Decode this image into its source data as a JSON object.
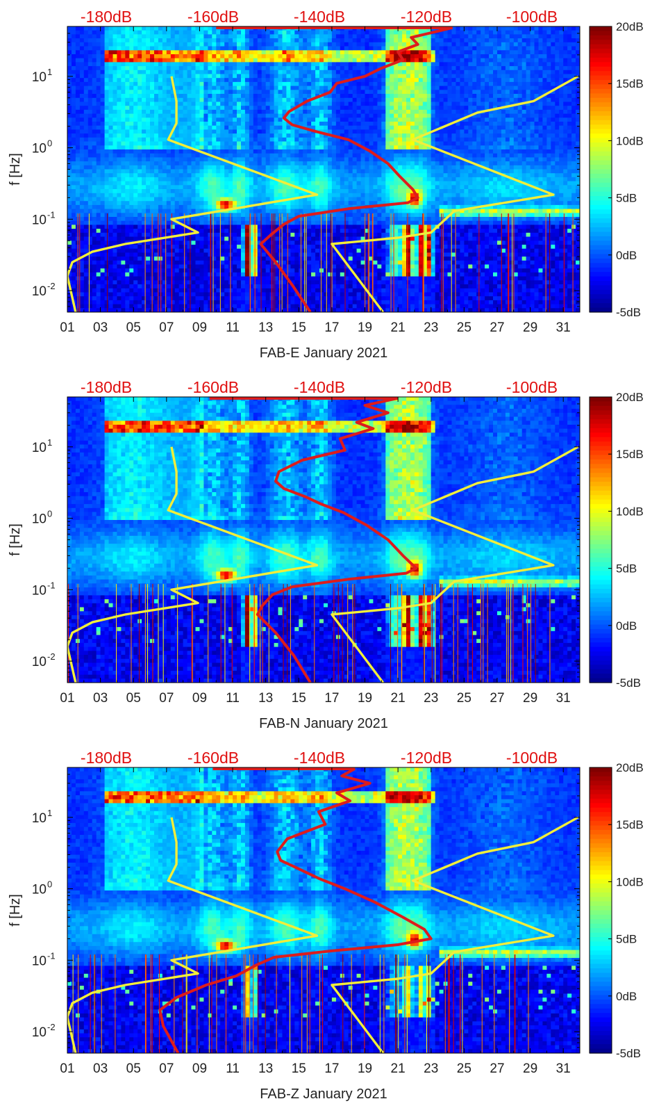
{
  "chart_data": [
    {
      "type": "heatmap",
      "station": "FAB-E",
      "xlabel": "FAB-E January 2021",
      "ylabel": "f [Hz]",
      "x_ticks": [
        "01",
        "03",
        "05",
        "07",
        "09",
        "11",
        "13",
        "15",
        "17",
        "19",
        "21",
        "23",
        "25",
        "27",
        "29",
        "31"
      ],
      "y_ticks": [
        "10^-2",
        "10^-1",
        "10^0",
        "10^1"
      ],
      "y_scale": "log",
      "ylim_hz": [
        0.005,
        50
      ],
      "top_axis_ticks": [
        "-180dB",
        "-160dB",
        "-140dB",
        "-120dB",
        "-100dB"
      ],
      "colorbar": {
        "ticks": [
          "20dB",
          "15dB",
          "10dB",
          "5dB",
          "0dB",
          "-5dB"
        ],
        "range_db": [
          -5,
          20
        ],
        "colormap": "jet"
      },
      "yellow_curve_color": "#f2ee3a",
      "red_curve_color": "#dd1c1c",
      "yellow_curve_left": [
        [
          7.3,
          10
        ],
        [
          7.6,
          4.5
        ],
        [
          7.6,
          2.2
        ],
        [
          7.1,
          1.3
        ],
        [
          16.1,
          0.22
        ],
        [
          7.3,
          0.1
        ],
        [
          8.9,
          0.065
        ],
        [
          4.5,
          0.045
        ],
        [
          2.5,
          0.035
        ],
        [
          1.3,
          0.025
        ],
        [
          1.0,
          0.016
        ],
        [
          1.5,
          0.005
        ]
      ],
      "yellow_curve_right": [
        [
          31.9,
          10
        ],
        [
          29.2,
          4.5
        ],
        [
          25.8,
          3.1
        ],
        [
          21.9,
          1.3
        ],
        [
          30.4,
          0.22
        ],
        [
          24.4,
          0.13
        ],
        [
          23.0,
          0.065
        ],
        [
          21.0,
          0.055
        ],
        [
          17.0,
          0.045
        ],
        [
          20.1,
          0.005
        ]
      ],
      "red_curve": [
        [
          24.3,
          48
        ],
        [
          21.8,
          35
        ],
        [
          22.2,
          28
        ],
        [
          21.0,
          22
        ],
        [
          21.3,
          17
        ],
        [
          20.0,
          13
        ],
        [
          19.0,
          10
        ],
        [
          17.3,
          8
        ],
        [
          16.9,
          6
        ],
        [
          15.5,
          4.5
        ],
        [
          14.4,
          3.2
        ],
        [
          14.1,
          2.6
        ],
        [
          14.6,
          2.1
        ],
        [
          16.0,
          1.7
        ],
        [
          18.0,
          1.3
        ],
        [
          19.3,
          0.9
        ],
        [
          20.4,
          0.6
        ],
        [
          21.1,
          0.4
        ],
        [
          21.9,
          0.26
        ],
        [
          22.2,
          0.2
        ],
        [
          21.6,
          0.17
        ],
        [
          18.0,
          0.14
        ],
        [
          15.0,
          0.11
        ],
        [
          14.1,
          0.085
        ],
        [
          13.3,
          0.06
        ],
        [
          12.7,
          0.045
        ],
        [
          13.6,
          0.025
        ],
        [
          14.6,
          0.012
        ],
        [
          15.7,
          0.005
        ]
      ],
      "red_top_segment": [
        10.0,
        24.3
      ]
    },
    {
      "type": "heatmap",
      "station": "FAB-N",
      "xlabel": "FAB-N January 2021",
      "ylabel": "f [Hz]",
      "x_ticks": [
        "01",
        "03",
        "05",
        "07",
        "09",
        "11",
        "13",
        "15",
        "17",
        "19",
        "21",
        "23",
        "25",
        "27",
        "29",
        "31"
      ],
      "y_ticks": [
        "10^-2",
        "10^-1",
        "10^0",
        "10^1"
      ],
      "y_scale": "log",
      "ylim_hz": [
        0.005,
        50
      ],
      "top_axis_ticks": [
        "-180dB",
        "-160dB",
        "-140dB",
        "-120dB",
        "-100dB"
      ],
      "colorbar": {
        "ticks": [
          "20dB",
          "15dB",
          "10dB",
          "5dB",
          "0dB",
          "-5dB"
        ],
        "range_db": [
          -5,
          20
        ],
        "colormap": "jet"
      },
      "yellow_curve_color": "#f2ee3a",
      "red_curve_color": "#dd1c1c",
      "yellow_curve_left": [
        [
          7.3,
          10
        ],
        [
          7.6,
          4.5
        ],
        [
          7.6,
          2.2
        ],
        [
          7.1,
          1.3
        ],
        [
          16.1,
          0.22
        ],
        [
          7.3,
          0.1
        ],
        [
          8.9,
          0.065
        ],
        [
          4.5,
          0.045
        ],
        [
          2.5,
          0.035
        ],
        [
          1.3,
          0.025
        ],
        [
          1.0,
          0.016
        ],
        [
          1.5,
          0.005
        ]
      ],
      "yellow_curve_right": [
        [
          31.9,
          10
        ],
        [
          29.2,
          4.5
        ],
        [
          25.8,
          3.1
        ],
        [
          21.9,
          1.3
        ],
        [
          30.4,
          0.22
        ],
        [
          24.4,
          0.13
        ],
        [
          23.0,
          0.065
        ],
        [
          21.0,
          0.055
        ],
        [
          17.0,
          0.045
        ],
        [
          20.1,
          0.005
        ]
      ],
      "red_curve": [
        [
          21.0,
          48
        ],
        [
          19.0,
          38
        ],
        [
          20.4,
          30
        ],
        [
          18.5,
          22
        ],
        [
          19.5,
          18
        ],
        [
          17.5,
          13
        ],
        [
          17.8,
          9
        ],
        [
          15.2,
          6.5
        ],
        [
          13.8,
          4.5
        ],
        [
          13.6,
          3.3
        ],
        [
          14.1,
          2.6
        ],
        [
          15.4,
          2.0
        ],
        [
          16.3,
          1.6
        ],
        [
          17.7,
          1.2
        ],
        [
          19.1,
          0.8
        ],
        [
          20.4,
          0.5
        ],
        [
          21.3,
          0.3
        ],
        [
          22.1,
          0.2
        ],
        [
          21.5,
          0.17
        ],
        [
          18.0,
          0.14
        ],
        [
          14.6,
          0.11
        ],
        [
          13.4,
          0.085
        ],
        [
          12.8,
          0.06
        ],
        [
          12.5,
          0.045
        ],
        [
          13.6,
          0.025
        ],
        [
          14.7,
          0.012
        ],
        [
          15.7,
          0.005
        ]
      ],
      "red_top_segment": [
        9.6,
        21.0
      ]
    },
    {
      "type": "heatmap",
      "station": "FAB-Z",
      "xlabel": "FAB-Z January 2021",
      "ylabel": "f [Hz]",
      "x_ticks": [
        "01",
        "03",
        "05",
        "07",
        "09",
        "11",
        "13",
        "15",
        "17",
        "19",
        "21",
        "23",
        "25",
        "27",
        "29",
        "31"
      ],
      "y_ticks": [
        "10^-2",
        "10^-1",
        "10^0",
        "10^1"
      ],
      "y_scale": "log",
      "ylim_hz": [
        0.005,
        50
      ],
      "top_axis_ticks": [
        "-180dB",
        "-160dB",
        "-140dB",
        "-120dB",
        "-100dB"
      ],
      "colorbar": {
        "ticks": [
          "20dB",
          "15dB",
          "10dB",
          "5dB",
          "0dB",
          "-5dB"
        ],
        "range_db": [
          -5,
          20
        ],
        "colormap": "jet"
      },
      "yellow_curve_color": "#f2ee3a",
      "red_curve_color": "#dd1c1c",
      "yellow_curve_left": [
        [
          7.3,
          10
        ],
        [
          7.6,
          4.5
        ],
        [
          7.6,
          2.2
        ],
        [
          7.1,
          1.3
        ],
        [
          16.1,
          0.22
        ],
        [
          7.3,
          0.1
        ],
        [
          8.9,
          0.065
        ],
        [
          4.5,
          0.045
        ],
        [
          2.5,
          0.035
        ],
        [
          1.3,
          0.025
        ],
        [
          1.0,
          0.016
        ],
        [
          1.5,
          0.005
        ]
      ],
      "yellow_curve_right": [
        [
          31.9,
          10
        ],
        [
          29.2,
          4.5
        ],
        [
          25.8,
          3.1
        ],
        [
          21.9,
          1.3
        ],
        [
          30.4,
          0.22
        ],
        [
          24.4,
          0.13
        ],
        [
          23.0,
          0.065
        ],
        [
          21.0,
          0.055
        ],
        [
          17.0,
          0.045
        ],
        [
          20.1,
          0.005
        ]
      ],
      "red_curve": [
        [
          18.4,
          48
        ],
        [
          17.6,
          38
        ],
        [
          19.3,
          30
        ],
        [
          17.3,
          22
        ],
        [
          18.1,
          17
        ],
        [
          16.2,
          12
        ],
        [
          16.6,
          8
        ],
        [
          14.3,
          5
        ],
        [
          13.7,
          3.3
        ],
        [
          13.9,
          2.5
        ],
        [
          15.0,
          1.9
        ],
        [
          16.2,
          1.4
        ],
        [
          17.8,
          1.0
        ],
        [
          19.6,
          0.65
        ],
        [
          21.3,
          0.4
        ],
        [
          22.6,
          0.27
        ],
        [
          23.0,
          0.2
        ],
        [
          21.0,
          0.165
        ],
        [
          17.0,
          0.135
        ],
        [
          13.5,
          0.11
        ],
        [
          12.4,
          0.085
        ],
        [
          11.2,
          0.06
        ],
        [
          9.4,
          0.045
        ],
        [
          7.6,
          0.03
        ],
        [
          6.6,
          0.02
        ],
        [
          6.8,
          0.012
        ],
        [
          7.7,
          0.005
        ]
      ],
      "red_top_segment": [
        9.8,
        18.4
      ]
    }
  ]
}
